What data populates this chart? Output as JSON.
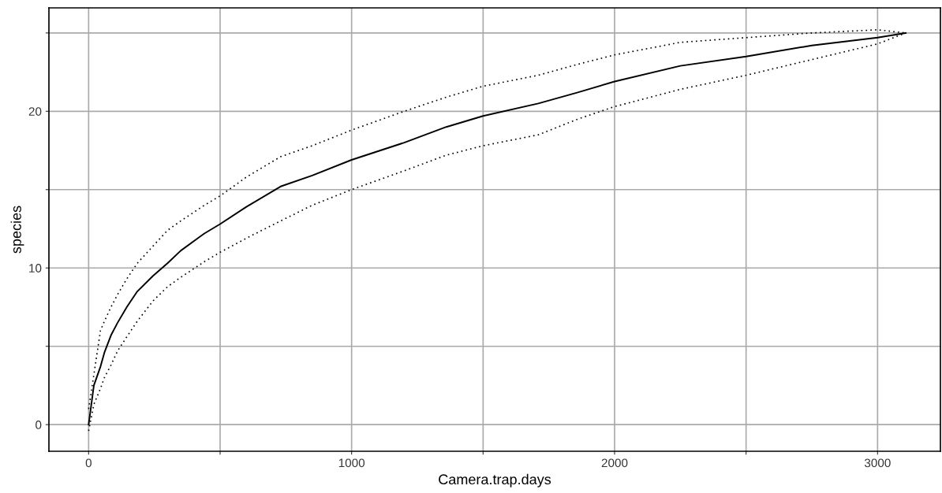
{
  "chart_data": {
    "type": "line",
    "xlabel": "Camera.trap.days",
    "ylabel": "species",
    "x": [
      0,
      20,
      45,
      60,
      85,
      110,
      145,
      185,
      245,
      300,
      350,
      440,
      500,
      600,
      730,
      850,
      1000,
      1200,
      1360,
      1500,
      1710,
      1860,
      2000,
      2250,
      2500,
      2750,
      3000,
      3107
    ],
    "series": [
      {
        "color": "#000000",
        "line_style": "solid",
        "values": [
          0,
          2.5,
          3.7,
          4.6,
          5.7,
          6.5,
          7.5,
          8.5,
          9.5,
          10.3,
          11.1,
          12.2,
          12.8,
          13.9,
          15.2,
          15.9,
          16.9,
          18.0,
          19.0,
          19.7,
          20.5,
          21.2,
          21.9,
          22.9,
          23.5,
          24.2,
          24.7,
          25.0
        ]
      },
      {
        "color": "#000000",
        "line_style": "dotted",
        "values": [
          -0.4,
          1.3,
          2.3,
          3.0,
          3.8,
          4.7,
          5.6,
          6.6,
          7.9,
          8.8,
          9.4,
          10.4,
          11.0,
          11.9,
          13.0,
          14.0,
          15.0,
          16.2,
          17.2,
          17.8,
          18.5,
          19.5,
          20.3,
          21.4,
          22.3,
          23.3,
          24.3,
          25.0
        ]
      },
      {
        "color": "#000000",
        "line_style": "dotted",
        "values": [
          1.0,
          3.2,
          6.0,
          6.6,
          7.5,
          8.3,
          9.3,
          10.3,
          11.4,
          12.4,
          13.0,
          14.0,
          14.6,
          15.8,
          17.1,
          17.8,
          18.8,
          20.0,
          20.9,
          21.6,
          22.3,
          23.0,
          23.6,
          24.4,
          24.7,
          25.0,
          25.2,
          25.0
        ]
      }
    ],
    "xlim": [
      -151,
      3239
    ],
    "ylim": [
      -1.7,
      26.6
    ],
    "xticks": [
      0,
      {
        "value": 500,
        "label": null
      },
      1000,
      {
        "value": 1500,
        "label": null
      },
      2000,
      {
        "value": 2500,
        "label": null
      },
      3000
    ],
    "yticks": [
      0,
      {
        "value": 5,
        "label": null
      },
      10,
      {
        "value": 15,
        "label": null
      },
      20,
      {
        "value": 25,
        "label": null
      }
    ],
    "grid": true,
    "marker": "none"
  }
}
